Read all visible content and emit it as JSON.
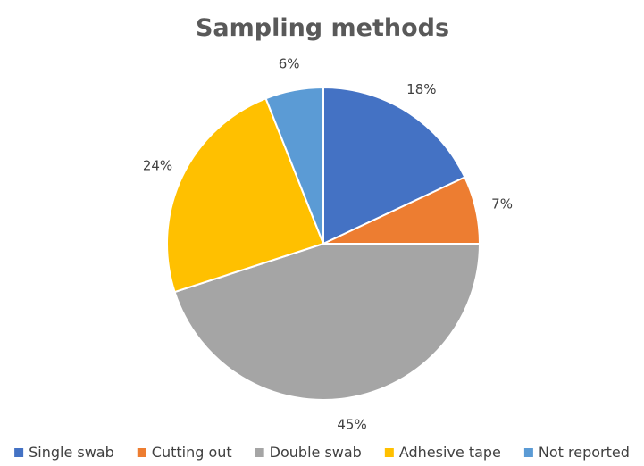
{
  "chart_data": {
    "type": "pie",
    "title": "Sampling methods",
    "legend_position": "bottom",
    "start_angle_deg": 0,
    "direction": "clockwise",
    "slices": [
      {
        "label": "Single swab",
        "value": 18,
        "display": "18%",
        "color": "#4472C4"
      },
      {
        "label": "Cutting out",
        "value": 7,
        "display": "7%",
        "color": "#ED7D31"
      },
      {
        "label": "Double swab",
        "value": 45,
        "display": "45%",
        "color": "#A5A5A5"
      },
      {
        "label": "Adhesive tape",
        "value": 24,
        "display": "24%",
        "color": "#FFC000"
      },
      {
        "label": "Not reported",
        "value": 6,
        "display": "6%",
        "color": "#5B9BD5"
      }
    ]
  }
}
